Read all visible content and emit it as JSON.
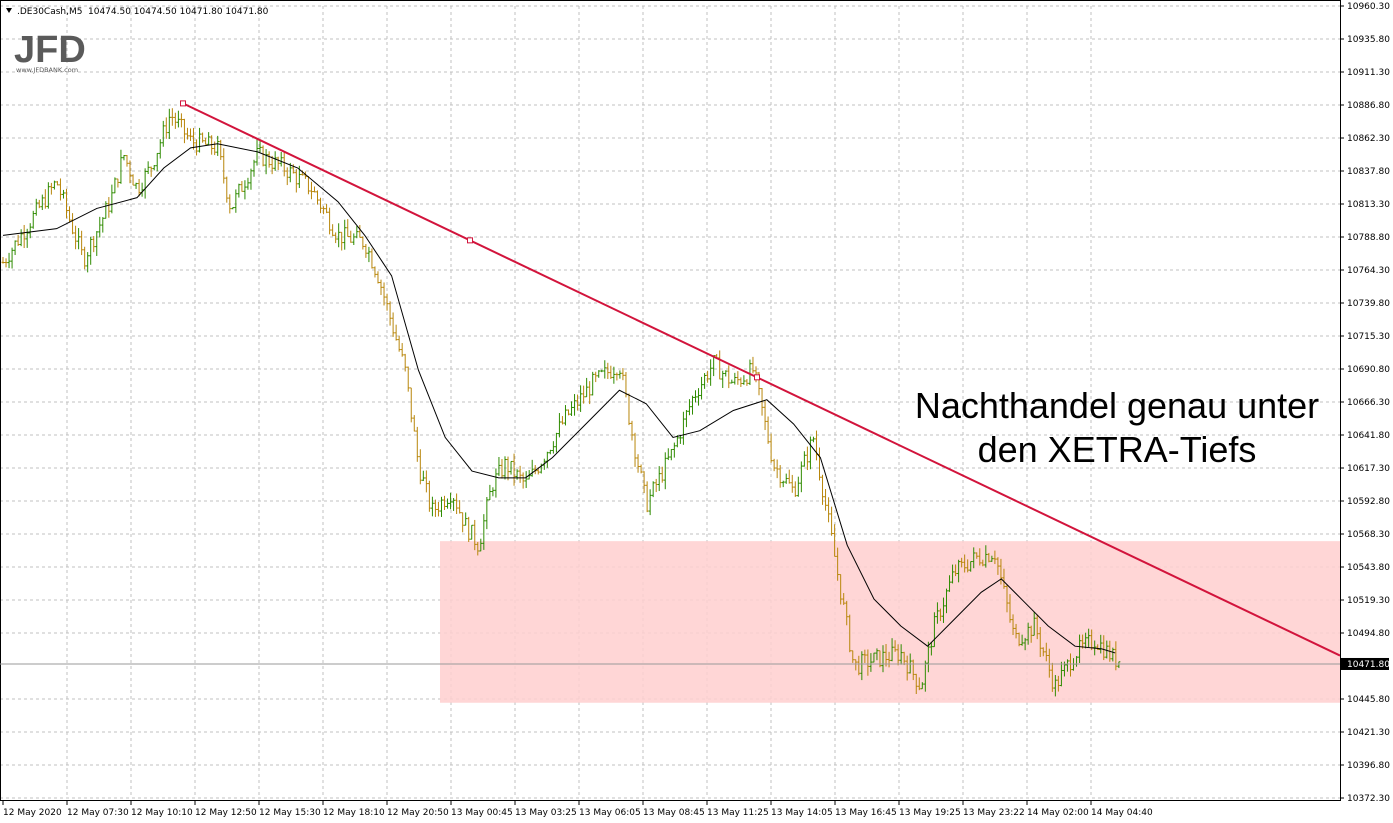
{
  "header": {
    "symbol": ".DE30Cash,M5",
    "ohlc": "10474.50 10474.50 10471.80 10471.80",
    "menu_icon": "triangle-down-icon"
  },
  "logo": {
    "name": "JFD",
    "url_text": "www.JFDBANK.com"
  },
  "colors": {
    "bull": "#2e8b00",
    "bear": "#b8860b",
    "ma": "#000000",
    "trendline": "#d2143c",
    "zone": "#ffcfcf",
    "grid": "#c0c0c0",
    "price_label_bg": "#000000"
  },
  "chart_data": {
    "type": "candlestick",
    "instrument": ".DE30Cash,M5",
    "grid": true,
    "ylim": [
      10372.3,
      10960.3
    ],
    "y_ticks": [
      "10960.30",
      "10935.80",
      "10911.30",
      "10886.80",
      "10862.30",
      "10837.80",
      "10813.30",
      "10788.80",
      "10764.30",
      "10739.80",
      "10715.30",
      "10690.80",
      "10666.30",
      "10641.80",
      "10617.30",
      "10592.80",
      "10568.30",
      "10543.80",
      "10519.30",
      "10494.80",
      "10471.80",
      "10445.80",
      "10421.30",
      "10396.80",
      "10372.30"
    ],
    "x_ticks": [
      "12 May 2020",
      "12 May 07:30",
      "12 May 10:10",
      "12 May 12:50",
      "12 May 15:30",
      "12 May 18:10",
      "12 May 20:50",
      "13 May 00:45",
      "13 May 03:25",
      "13 May 06:05",
      "13 May 08:45",
      "13 May 11:25",
      "13 May 14:05",
      "13 May 16:45",
      "13 May 19:25",
      "13 May 23:22",
      "14 May 02:00",
      "14 May 04:40"
    ],
    "current_price": "10471.80",
    "price_path": [
      [
        0,
        10770
      ],
      [
        0.02,
        10800
      ],
      [
        0.04,
        10830
      ],
      [
        0.06,
        10772
      ],
      [
        0.08,
        10815
      ],
      [
        0.09,
        10850
      ],
      [
        0.1,
        10825
      ],
      [
        0.11,
        10840
      ],
      [
        0.125,
        10880
      ],
      [
        0.14,
        10860
      ],
      [
        0.16,
        10855
      ],
      [
        0.17,
        10810
      ],
      [
        0.19,
        10850
      ],
      [
        0.21,
        10840
      ],
      [
        0.23,
        10825
      ],
      [
        0.25,
        10790
      ],
      [
        0.27,
        10785
      ],
      [
        0.28,
        10760
      ],
      [
        0.3,
        10690
      ],
      [
        0.31,
        10620
      ],
      [
        0.32,
        10585
      ],
      [
        0.335,
        10600
      ],
      [
        0.345,
        10575
      ],
      [
        0.355,
        10560
      ],
      [
        0.365,
        10605
      ],
      [
        0.375,
        10620
      ],
      [
        0.39,
        10605
      ],
      [
        0.4,
        10620
      ],
      [
        0.42,
        10655
      ],
      [
        0.44,
        10680
      ],
      [
        0.46,
        10695
      ],
      [
        0.47,
        10640
      ],
      [
        0.48,
        10590
      ],
      [
        0.5,
        10630
      ],
      [
        0.515,
        10670
      ],
      [
        0.53,
        10695
      ],
      [
        0.545,
        10680
      ],
      [
        0.56,
        10690
      ],
      [
        0.575,
        10620
      ],
      [
        0.59,
        10600
      ],
      [
        0.605,
        10640
      ],
      [
        0.62,
        10555
      ],
      [
        0.635,
        10470
      ],
      [
        0.65,
        10475
      ],
      [
        0.67,
        10480
      ],
      [
        0.685,
        10455
      ],
      [
        0.695,
        10500
      ],
      [
        0.71,
        10540
      ],
      [
        0.725,
        10550
      ],
      [
        0.74,
        10555
      ],
      [
        0.755,
        10490
      ],
      [
        0.77,
        10500
      ],
      [
        0.785,
        10455
      ],
      [
        0.8,
        10480
      ],
      [
        0.815,
        10490
      ],
      [
        0.83,
        10475
      ]
    ],
    "ma_path": [
      [
        0,
        10790
      ],
      [
        0.04,
        10795
      ],
      [
        0.07,
        10810
      ],
      [
        0.1,
        10818
      ],
      [
        0.12,
        10840
      ],
      [
        0.14,
        10855
      ],
      [
        0.16,
        10858
      ],
      [
        0.19,
        10852
      ],
      [
        0.22,
        10840
      ],
      [
        0.25,
        10815
      ],
      [
        0.27,
        10790
      ],
      [
        0.29,
        10760
      ],
      [
        0.31,
        10690
      ],
      [
        0.33,
        10640
      ],
      [
        0.35,
        10615
      ],
      [
        0.37,
        10610
      ],
      [
        0.39,
        10610
      ],
      [
        0.41,
        10625
      ],
      [
        0.44,
        10655
      ],
      [
        0.46,
        10675
      ],
      [
        0.48,
        10665
      ],
      [
        0.5,
        10640
      ],
      [
        0.52,
        10645
      ],
      [
        0.545,
        10660
      ],
      [
        0.57,
        10668
      ],
      [
        0.59,
        10650
      ],
      [
        0.61,
        10625
      ],
      [
        0.63,
        10560
      ],
      [
        0.65,
        10520
      ],
      [
        0.67,
        10500
      ],
      [
        0.69,
        10485
      ],
      [
        0.71,
        10505
      ],
      [
        0.73,
        10525
      ],
      [
        0.745,
        10535
      ],
      [
        0.76,
        10520
      ],
      [
        0.78,
        10500
      ],
      [
        0.8,
        10485
      ],
      [
        0.82,
        10483
      ],
      [
        0.83,
        10480
      ]
    ],
    "trendline": {
      "p1": {
        "time": "12 May 10:20",
        "price": 10888
      },
      "p2": {
        "time": "14 May 08:30",
        "price": 10484
      },
      "anchors_price": [
        10888,
        10785,
        10688
      ]
    },
    "zone": {
      "top": 10563,
      "bottom": 10443,
      "start_time": "12 May 22:30"
    },
    "annotation": [
      "Nachthandel genau unter",
      "den XETRA-Tiefs"
    ]
  }
}
